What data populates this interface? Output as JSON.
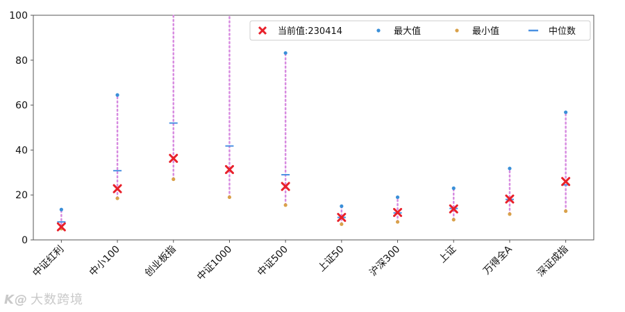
{
  "chart_data": {
    "type": "scatter",
    "categories": [
      "中证红利",
      "中小100",
      "创业板指",
      "中证1000",
      "中证500",
      "上证50",
      "沪深300",
      "上证",
      "万得全A",
      "深证成指"
    ],
    "ylim": [
      0,
      100
    ],
    "yticks": [
      0,
      20,
      40,
      60,
      80,
      100
    ],
    "grid": false,
    "legend_position": "top-right",
    "series": [
      {
        "name": "当前值:230414",
        "marker": "x",
        "color": "#e8202a",
        "values": [
          5.8,
          22.8,
          36.3,
          31.3,
          23.8,
          10.0,
          12.2,
          13.8,
          18.2,
          26.0
        ]
      },
      {
        "name": "最大值",
        "marker": "dot",
        "color": "#3a8fd8",
        "values": [
          13.5,
          64.5,
          100,
          100,
          83.2,
          15.0,
          19.0,
          23.0,
          31.8,
          56.8
        ]
      },
      {
        "name": "最小值",
        "marker": "dot",
        "color": "#d9a14a",
        "values": [
          5.0,
          18.5,
          27.0,
          19.0,
          15.5,
          7.0,
          8.0,
          9.0,
          11.5,
          12.8
        ]
      },
      {
        "name": "中位数",
        "marker": "dash",
        "color": "#4a90e2",
        "values": [
          8.0,
          30.8,
          52.0,
          41.8,
          29.0,
          10.0,
          12.0,
          14.0,
          18.0,
          24.5
        ]
      }
    ],
    "range_line_color": "#d78be0"
  },
  "watermark": {
    "logo": "K@",
    "text": "大数跨境"
  }
}
